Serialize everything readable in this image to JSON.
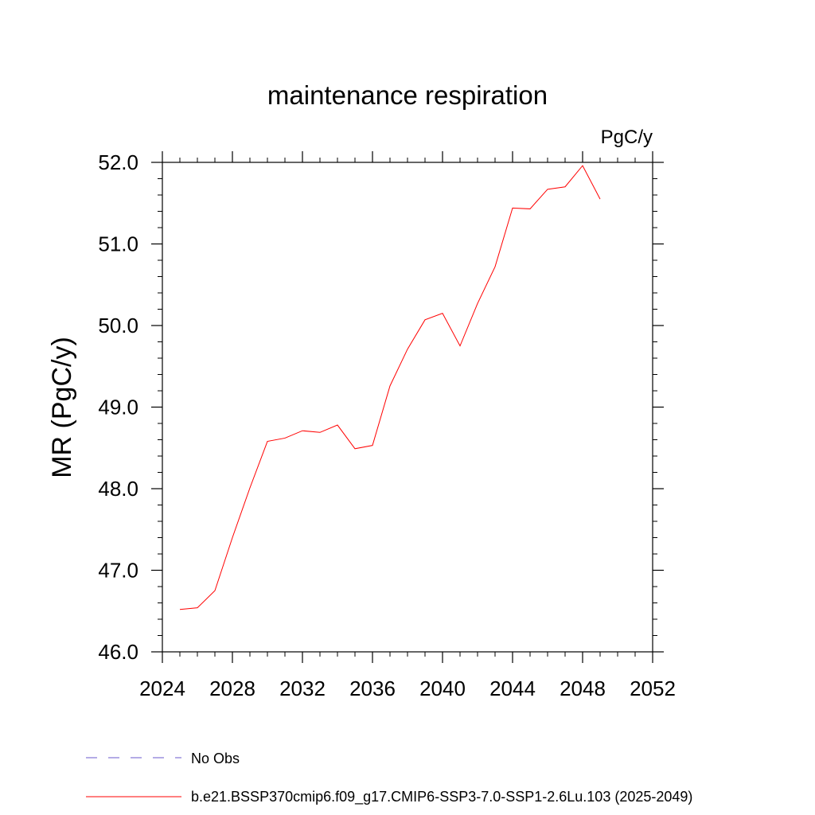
{
  "chart_data": {
    "type": "line",
    "title": "maintenance respiration",
    "units_label": "PgC/y",
    "ylabel": "MR  (PgC/y)",
    "xlabel": "",
    "xlim": [
      2024,
      2052
    ],
    "ylim": [
      46.0,
      52.0
    ],
    "x_ticks": [
      "2024",
      "2028",
      "2032",
      "2036",
      "2040",
      "2044",
      "2048",
      "2052"
    ],
    "y_ticks": [
      "46.0",
      "47.0",
      "48.0",
      "49.0",
      "50.0",
      "51.0",
      "52.0"
    ],
    "grid": false,
    "legend_position": "bottom",
    "series": [
      {
        "name": "b.e21.BSSP370cmip6.f09_g17.CMIP6-SSP3-7.0-SSP1-2.6Lu.103 (2025-2049)",
        "color": "#ff0000",
        "style": "solid",
        "x": [
          2025,
          2026,
          2027,
          2028,
          2029,
          2030,
          2031,
          2032,
          2033,
          2034,
          2035,
          2036,
          2037,
          2038,
          2039,
          2040,
          2041,
          2042,
          2043,
          2044,
          2045,
          2046,
          2047,
          2048,
          2049
        ],
        "values": [
          46.52,
          46.54,
          46.75,
          47.4,
          48.01,
          48.58,
          48.62,
          48.71,
          48.69,
          48.78,
          48.49,
          48.53,
          49.26,
          49.71,
          50.07,
          50.15,
          49.75,
          50.27,
          50.72,
          51.44,
          51.43,
          51.67,
          51.7,
          51.96,
          51.55
        ]
      },
      {
        "name": "No Obs",
        "color": "#6a5acd",
        "style": "dashed",
        "x": [],
        "values": []
      }
    ]
  }
}
